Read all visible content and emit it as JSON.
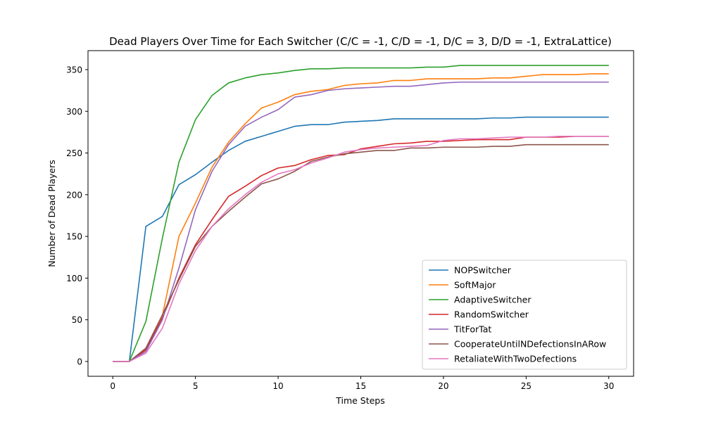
{
  "chart_data": {
    "type": "line",
    "title": "Dead Players Over Time for Each Switcher (C/C = -1, C/D = -1, D/C = 3, D/D = -1, ExtraLattice)",
    "xlabel": "Time Steps",
    "ylabel": "Number of Dead Players",
    "xlim": [
      -1.5,
      31.5
    ],
    "ylim": [
      -17.75,
      372.75
    ],
    "xticks": [
      0,
      5,
      10,
      15,
      20,
      25,
      30
    ],
    "yticks": [
      0,
      50,
      100,
      150,
      200,
      250,
      300,
      350
    ],
    "grid": false,
    "legend_position": "lower-right",
    "x": [
      0,
      1,
      2,
      3,
      4,
      5,
      6,
      7,
      8,
      9,
      10,
      11,
      12,
      13,
      14,
      15,
      16,
      17,
      18,
      19,
      20,
      21,
      22,
      23,
      24,
      25,
      26,
      27,
      28,
      29,
      30
    ],
    "series": [
      {
        "name": "NOPSwitcher",
        "color": "#1f77b4",
        "values": [
          0,
          0,
          162,
          174,
          212,
          224,
          239,
          253,
          264,
          270,
          276,
          282,
          284,
          284,
          287,
          288,
          289,
          291,
          291,
          291,
          291,
          291,
          291,
          292,
          292,
          293,
          293,
          293,
          293,
          293,
          293
        ]
      },
      {
        "name": "SoftMajor",
        "color": "#ff7f0e",
        "values": [
          0,
          0,
          15,
          55,
          150,
          190,
          233,
          263,
          285,
          304,
          311,
          320,
          324,
          326,
          331,
          333,
          334,
          337,
          337,
          339,
          339,
          339,
          339,
          340,
          340,
          342,
          344,
          344,
          344,
          345,
          345
        ]
      },
      {
        "name": "AdaptiveSwitcher",
        "color": "#2ca02c",
        "values": [
          0,
          0,
          48,
          148,
          239,
          290,
          319,
          334,
          340,
          344,
          346,
          349,
          351,
          351,
          352,
          352,
          352,
          352,
          352,
          353,
          353,
          355,
          355,
          355,
          355,
          355,
          355,
          355,
          355,
          355,
          355
        ]
      },
      {
        "name": "RandomSwitcher",
        "color": "#d62728",
        "values": [
          0,
          0,
          14,
          52,
          100,
          140,
          170,
          198,
          210,
          223,
          232,
          235,
          242,
          247,
          248,
          255,
          258,
          261,
          262,
          264,
          264,
          265,
          266,
          266,
          266,
          269,
          269,
          269,
          270,
          270,
          270
        ]
      },
      {
        "name": "TitForTat",
        "color": "#9467bd",
        "values": [
          0,
          0,
          12,
          50,
          112,
          182,
          228,
          260,
          282,
          293,
          302,
          317,
          320,
          325,
          327,
          328,
          329,
          330,
          330,
          332,
          334,
          335,
          335,
          335,
          335,
          335,
          335,
          335,
          335,
          335,
          335
        ]
      },
      {
        "name": "CooperateUntilNDefectionsInARow",
        "color": "#8c564b",
        "values": [
          0,
          0,
          16,
          56,
          98,
          138,
          162,
          180,
          197,
          213,
          219,
          228,
          240,
          245,
          249,
          251,
          253,
          253,
          256,
          256,
          257,
          257,
          257,
          258,
          258,
          260,
          260,
          260,
          260,
          260,
          260
        ]
      },
      {
        "name": "RetaliateWithTwoDefections",
        "color": "#e377c2",
        "values": [
          0,
          0,
          10,
          40,
          93,
          133,
          162,
          183,
          200,
          215,
          225,
          230,
          238,
          244,
          251,
          254,
          256,
          257,
          258,
          259,
          265,
          267,
          267,
          268,
          269,
          269,
          269,
          270,
          270,
          270,
          270
        ]
      }
    ]
  }
}
